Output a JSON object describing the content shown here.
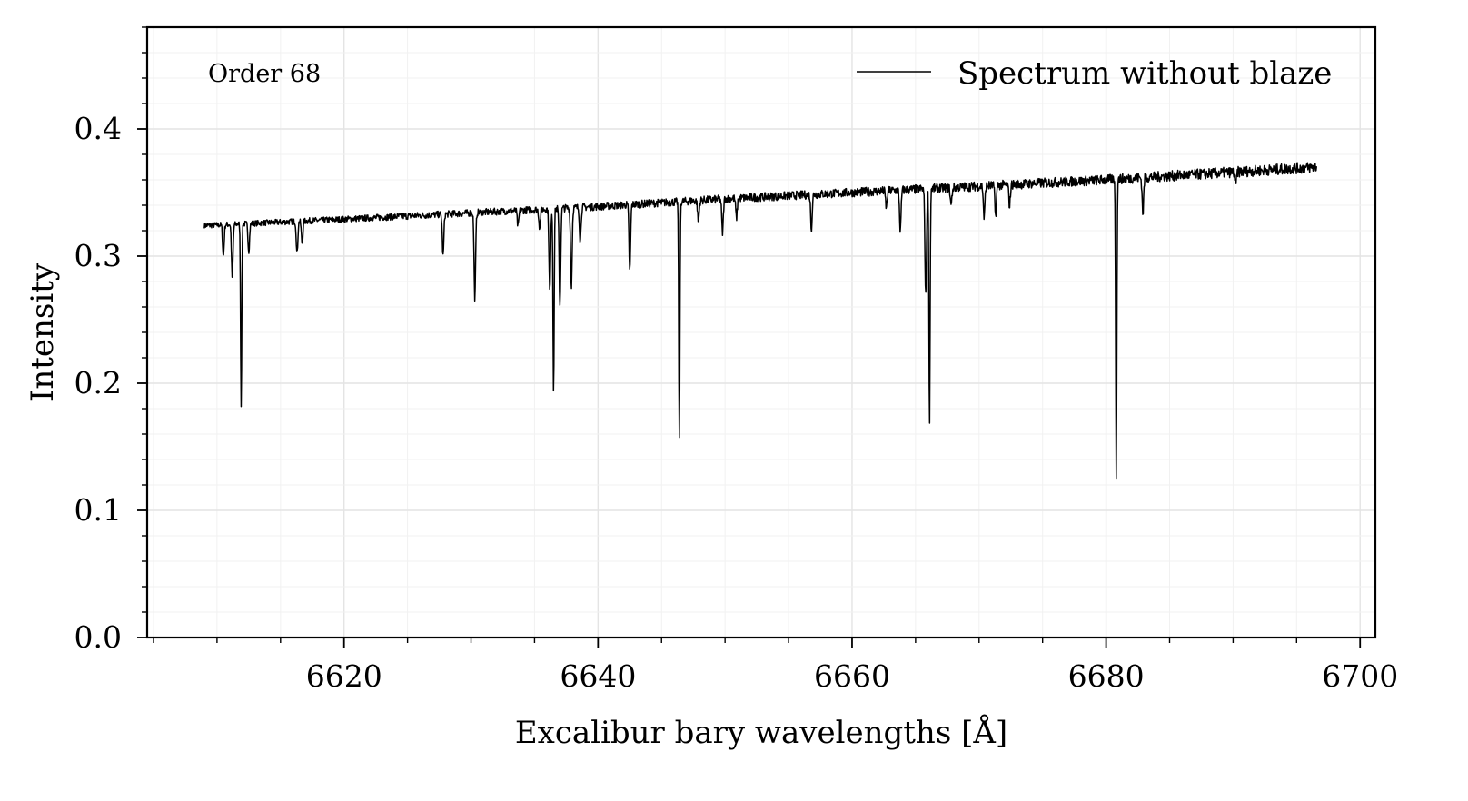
{
  "chart_data": {
    "type": "line",
    "title": "",
    "xlabel": "Excalibur bary wavelengths [Å]",
    "ylabel": "Intensity",
    "xlim": [
      6604.5,
      6701.2
    ],
    "ylim": [
      0.0,
      0.48
    ],
    "x_ticks": [
      6620,
      6640,
      6660,
      6680,
      6700
    ],
    "x_tick_labels": [
      "6620",
      "6640",
      "6660",
      "6680",
      "6700"
    ],
    "y_ticks": [
      0.0,
      0.1,
      0.2,
      0.3,
      0.4
    ],
    "y_tick_labels": [
      "0.0",
      "0.1",
      "0.2",
      "0.3",
      "0.4"
    ],
    "grid": true,
    "annotation": "Order 68",
    "legend_position": "top-right",
    "series": [
      {
        "name": "Spectrum without blaze",
        "color": "#000000",
        "continuum": [
          [
            6609.0,
            0.324
          ],
          [
            6620.0,
            0.329
          ],
          [
            6630.0,
            0.334
          ],
          [
            6640.0,
            0.339
          ],
          [
            6650.0,
            0.345
          ],
          [
            6660.0,
            0.35
          ],
          [
            6670.0,
            0.355
          ],
          [
            6680.0,
            0.36
          ],
          [
            6690.0,
            0.366
          ],
          [
            6696.6,
            0.37
          ]
        ],
        "absorption_lines": [
          {
            "x": 6610.5,
            "min": 0.3
          },
          {
            "x": 6611.2,
            "min": 0.283
          },
          {
            "x": 6611.9,
            "min": 0.183
          },
          {
            "x": 6612.5,
            "min": 0.304
          },
          {
            "x": 6616.3,
            "min": 0.302
          },
          {
            "x": 6616.7,
            "min": 0.31
          },
          {
            "x": 6627.8,
            "min": 0.3
          },
          {
            "x": 6630.3,
            "min": 0.267
          },
          {
            "x": 6633.7,
            "min": 0.323
          },
          {
            "x": 6635.4,
            "min": 0.323
          },
          {
            "x": 6636.2,
            "min": 0.272
          },
          {
            "x": 6636.5,
            "min": 0.194
          },
          {
            "x": 6637.0,
            "min": 0.262
          },
          {
            "x": 6637.9,
            "min": 0.276
          },
          {
            "x": 6638.6,
            "min": 0.312
          },
          {
            "x": 6642.5,
            "min": 0.288
          },
          {
            "x": 6646.4,
            "min": 0.155
          },
          {
            "x": 6647.9,
            "min": 0.327
          },
          {
            "x": 6649.8,
            "min": 0.318
          },
          {
            "x": 6650.9,
            "min": 0.33
          },
          {
            "x": 6656.8,
            "min": 0.322
          },
          {
            "x": 6662.7,
            "min": 0.338
          },
          {
            "x": 6663.8,
            "min": 0.32
          },
          {
            "x": 6665.8,
            "min": 0.268
          },
          {
            "x": 6666.1,
            "min": 0.169
          },
          {
            "x": 6667.8,
            "min": 0.34
          },
          {
            "x": 6670.4,
            "min": 0.33
          },
          {
            "x": 6671.3,
            "min": 0.332
          },
          {
            "x": 6672.4,
            "min": 0.34
          },
          {
            "x": 6680.8,
            "min": 0.126
          },
          {
            "x": 6682.9,
            "min": 0.334
          },
          {
            "x": 6690.2,
            "min": 0.355
          }
        ]
      }
    ]
  }
}
